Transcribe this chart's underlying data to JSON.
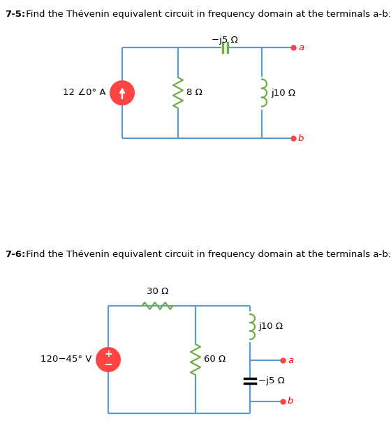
{
  "title1_bold": "7-5:",
  "title1_rest": " Find the Thévenin equivalent circuit in frequency domain at the terminals a-b:",
  "title2_bold": "7-6:",
  "title2_rest": " Find the Thévenin equivalent circuit in frequency domain at the terminals a-b:",
  "c1_source_label": "12 ∠0° A",
  "c1_r1_label": "8 Ω",
  "c1_cap_label": "−j5 Ω",
  "c1_ind_label": "j10 Ω",
  "c2_source_label": "120−45° V",
  "c2_r1_label": "30 Ω",
  "c2_r2_label": "60 Ω",
  "c2_ind_label": "j10 Ω",
  "c2_cap_label": "−j5 Ω",
  "wire_color": "#5B9BD5",
  "comp_color": "#70AD47",
  "source_color": "#FF4444",
  "term_color": "#FF4444",
  "term_label_color": "#FF0000",
  "text_color": "#000000",
  "bg_color": "#FFFFFF",
  "fig_w": 5.6,
  "fig_h": 6.13,
  "dpi": 100
}
